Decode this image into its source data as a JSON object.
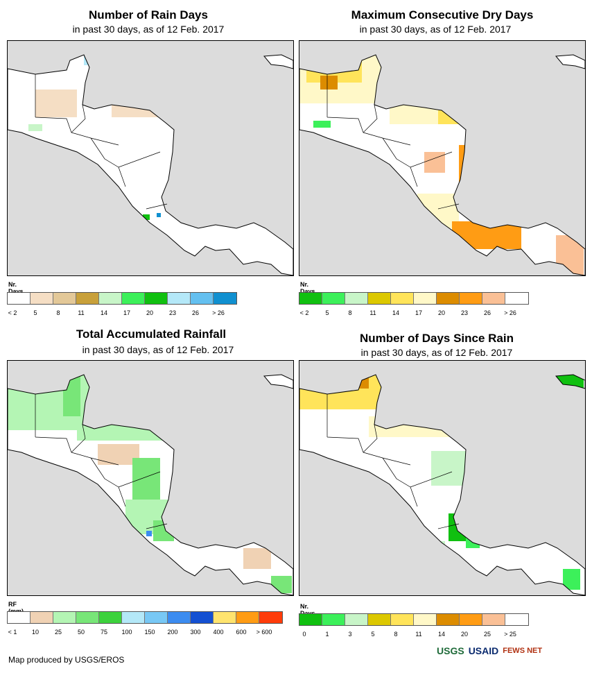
{
  "panels": [
    {
      "title": "Number of Rain Days",
      "subtitle": "in past 30 days, as of 12 Feb. 2017",
      "legend_title": "Nr. Days",
      "legend_colors": [
        "#ffffff",
        "#f5dec4",
        "#e3c898",
        "#c8a03a",
        "#c8f5c8",
        "#3cf05a",
        "#10c010",
        "#b4e8f8",
        "#64c0f0",
        "#1090d0"
      ],
      "legend_labels": [
        "< 2",
        "5",
        "8",
        "11",
        "14",
        "17",
        "20",
        "23",
        "26",
        "> 26"
      ]
    },
    {
      "title": "Maximum Consecutive Dry Days",
      "subtitle": "in past 30 days, as of 12 Feb. 2017",
      "legend_title": "Nr. Days",
      "legend_colors": [
        "#10c010",
        "#3cf05a",
        "#c8f5c8",
        "#dcc800",
        "#ffe45a",
        "#fff8c8",
        "#dc8c00",
        "#ff9c14",
        "#fac096",
        "#ffffff"
      ],
      "legend_labels": [
        "< 2",
        "5",
        "8",
        "11",
        "14",
        "17",
        "20",
        "23",
        "26",
        "> 26"
      ]
    },
    {
      "title": "Total Accumulated Rainfall",
      "subtitle": "in past 30 days, as of 12 Feb. 2017",
      "legend_title": "RF (mm)",
      "legend_colors": [
        "#ffffff",
        "#f0d2b4",
        "#b4f5b4",
        "#78e678",
        "#3cd23c",
        "#b4e8f8",
        "#78c8f5",
        "#3c8cf0",
        "#1450d2",
        "#ffe46e",
        "#ff9c14",
        "#ff3c0a"
      ],
      "legend_labels": [
        "< 1",
        "10",
        "25",
        "50",
        "75",
        "100",
        "150",
        "200",
        "300",
        "400",
        "600",
        "> 600"
      ]
    },
    {
      "title": "Number of Days Since Rain",
      "subtitle": "in past 30 days, as of 12 Feb. 2017",
      "legend_title": "Nr. Days",
      "legend_colors": [
        "#10c010",
        "#3cf05a",
        "#c8f5c8",
        "#dcc800",
        "#ffe45a",
        "#fff8c8",
        "#dc8c00",
        "#ff9c14",
        "#fac096",
        "#ffffff"
      ],
      "legend_labels": [
        "0",
        "1",
        "3",
        "5",
        "8",
        "11",
        "14",
        "20",
        "25",
        "> 25"
      ]
    }
  ],
  "footer": "Map produced by USGS/EROS",
  "logos": [
    "USGS",
    "USAID",
    "FEWS NET"
  ]
}
